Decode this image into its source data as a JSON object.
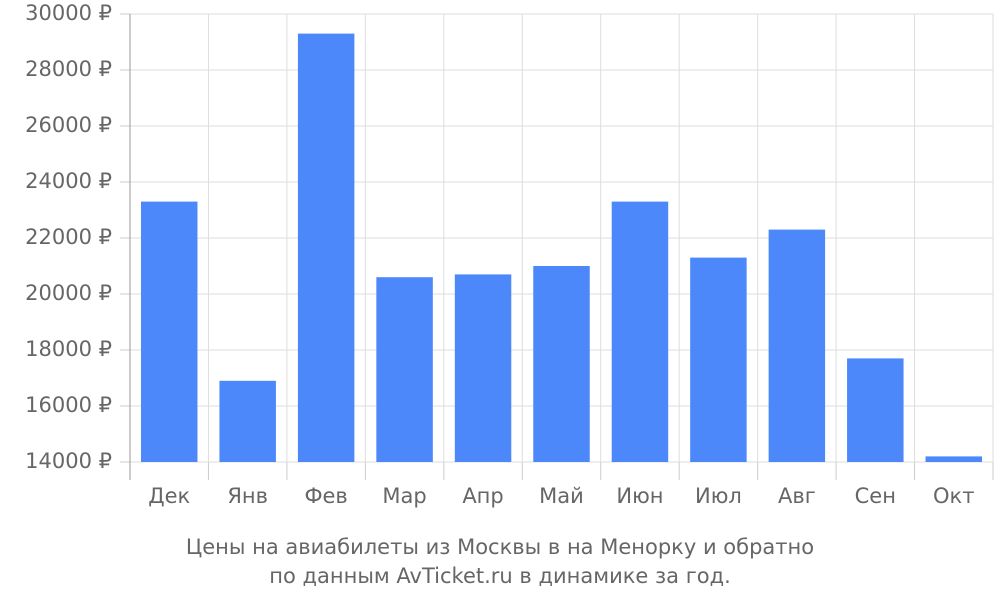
{
  "chart_data": {
    "type": "bar",
    "title": [
      "Цены на авиабилеты из Москвы в на Менорку и обратно",
      "по данным AvTicket.ru в динамике за год."
    ],
    "categories": [
      "Дек",
      "Янв",
      "Фев",
      "Мар",
      "Апр",
      "Май",
      "Июн",
      "Июл",
      "Авг",
      "Сен",
      "Окт"
    ],
    "values": [
      23300,
      16900,
      29300,
      20600,
      20700,
      21000,
      23300,
      21300,
      22300,
      17700,
      14200
    ],
    "color": "#4d88fb",
    "ylim": [
      14000,
      30000
    ],
    "yticks": [
      {
        "value": 14000,
        "label": "14000 ₽"
      },
      {
        "value": 16000,
        "label": "16000 ₽"
      },
      {
        "value": 18000,
        "label": "18000 ₽"
      },
      {
        "value": 20000,
        "label": "20000 ₽"
      },
      {
        "value": 22000,
        "label": "22000 ₽"
      },
      {
        "value": 24000,
        "label": "24000 ₽"
      },
      {
        "value": 26000,
        "label": "26000 ₽"
      },
      {
        "value": 28000,
        "label": "28000 ₽"
      },
      {
        "value": 30000,
        "label": "30000 ₽"
      }
    ],
    "grid": true
  }
}
